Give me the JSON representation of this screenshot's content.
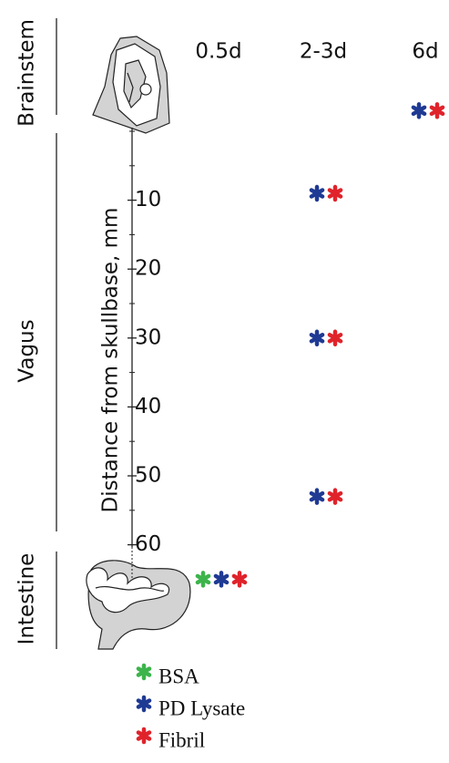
{
  "chart_data": {
    "type": "scatter",
    "categories": [
      "0.5d",
      "2-3d",
      "6d"
    ],
    "y_label": "Distance from skullbase, mm",
    "regions": [
      "Brainstem",
      "Vagus",
      "Intestine"
    ],
    "ylim": [
      0,
      65
    ],
    "yticks": [
      10,
      20,
      30,
      40,
      50,
      60
    ],
    "yminorticks": [
      0,
      5,
      15,
      25,
      35,
      45,
      55
    ],
    "series": [
      {
        "name": "BSA",
        "color": "#3cb44b",
        "x": [
          "0.5d"
        ],
        "values": [
          65
        ]
      },
      {
        "name": "PD Lysate",
        "color": "#1f3a93",
        "x": [
          "0.5d",
          "2-3d",
          "2-3d",
          "2-3d",
          "6d"
        ],
        "values": [
          65,
          9,
          30,
          53,
          -3
        ]
      },
      {
        "name": "Fibril",
        "color": "#e0232b",
        "x": [
          "0.5d",
          "2-3d",
          "2-3d",
          "2-3d",
          "6d"
        ],
        "values": [
          65,
          9,
          30,
          53,
          -3
        ]
      }
    ]
  }
}
